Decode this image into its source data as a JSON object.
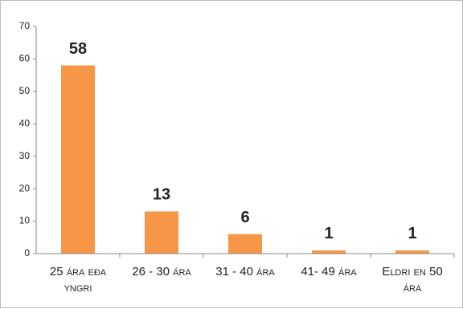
{
  "chart_data": {
    "type": "bar",
    "categories": [
      "25 ára eða yngri",
      "26 - 30 ára",
      "31 - 40 ára",
      "41- 49 ára",
      "Eldri en 50 ára"
    ],
    "values": [
      58,
      13,
      6,
      1,
      1
    ],
    "color": "#f79646",
    "ylim": [
      0,
      70
    ],
    "yticks": [
      0,
      10,
      20,
      30,
      40,
      50,
      60,
      70
    ],
    "grid": false
  }
}
